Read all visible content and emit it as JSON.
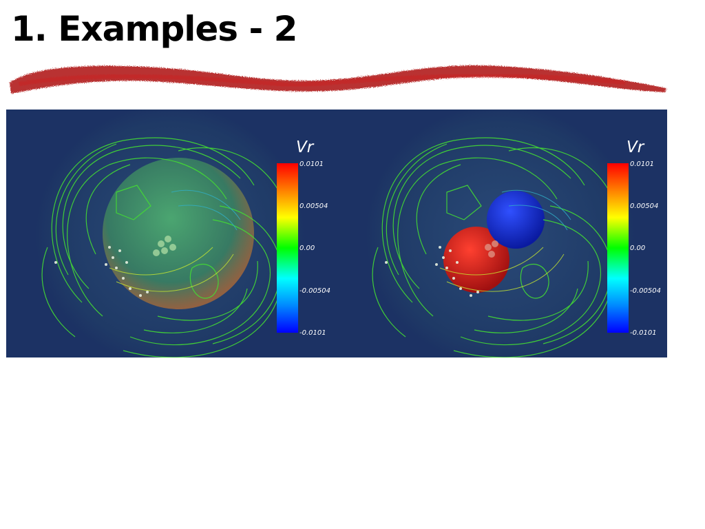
{
  "slide": {
    "title": "1. Examples - 2"
  },
  "panels": [
    {
      "colorbar": {
        "title": "Vr",
        "ticks": [
          "0.0101",
          "0.00504",
          "0.00",
          "-0.00504",
          "-0.0101"
        ]
      }
    },
    {
      "colorbar": {
        "title": "Vr",
        "ticks": [
          "0.0101",
          "0.00504",
          "0.00",
          "-0.00504",
          "-0.0101"
        ]
      }
    }
  ],
  "colors": {
    "background": "#1c3264",
    "brush_stroke": "#b01414",
    "field_lines": "#44dd33"
  }
}
